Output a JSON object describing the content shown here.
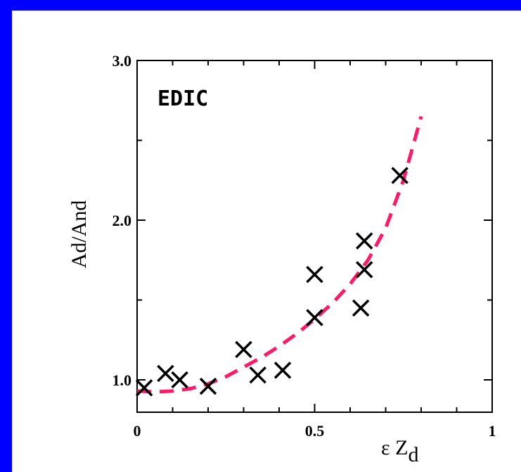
{
  "chart_data": {
    "type": "scatter",
    "annotation": "EDIC",
    "xlabel": "ε Z",
    "xlabel_subscript": "d",
    "ylabel": "Ad/And",
    "xlim": [
      0,
      1
    ],
    "ylim": [
      0.85,
      3.0
    ],
    "x_ticks": [
      {
        "value": 0,
        "label": "0"
      },
      {
        "value": 0.5,
        "label": "0.5"
      },
      {
        "value": 1,
        "label": "1"
      }
    ],
    "y_ticks": [
      {
        "value": 1.0,
        "label": "1.0"
      },
      {
        "value": 2.0,
        "label": "2.0"
      },
      {
        "value": 3.0,
        "label": "3.0"
      }
    ],
    "minor_x_ticks": [
      0.1,
      0.2,
      0.3,
      0.4,
      0.6,
      0.7,
      0.8,
      0.9
    ],
    "minor_y_ticks": [
      1.5,
      2.5
    ],
    "grid": false,
    "series": [
      {
        "marker": "x",
        "color": "#000000",
        "x": [
          0.02,
          0.08,
          0.12,
          0.2,
          0.3,
          0.34,
          0.41,
          0.5,
          0.5,
          0.63,
          0.64,
          0.64,
          0.74
        ],
        "y": [
          0.95,
          1.04,
          1.0,
          0.96,
          1.19,
          1.03,
          1.06,
          1.39,
          1.66,
          1.45,
          1.69,
          1.87,
          2.28
        ]
      }
    ],
    "fit_curve": {
      "style": "dashed",
      "color": "#ff1a66",
      "x": [
        0.0,
        0.05,
        0.1,
        0.15,
        0.2,
        0.25,
        0.3,
        0.35,
        0.4,
        0.45,
        0.5,
        0.55,
        0.6,
        0.65,
        0.7,
        0.75,
        0.8
      ],
      "y": [
        0.93,
        0.925,
        0.93,
        0.945,
        0.975,
        1.02,
        1.08,
        1.14,
        1.21,
        1.29,
        1.38,
        1.48,
        1.6,
        1.75,
        1.95,
        2.25,
        2.65
      ]
    }
  }
}
